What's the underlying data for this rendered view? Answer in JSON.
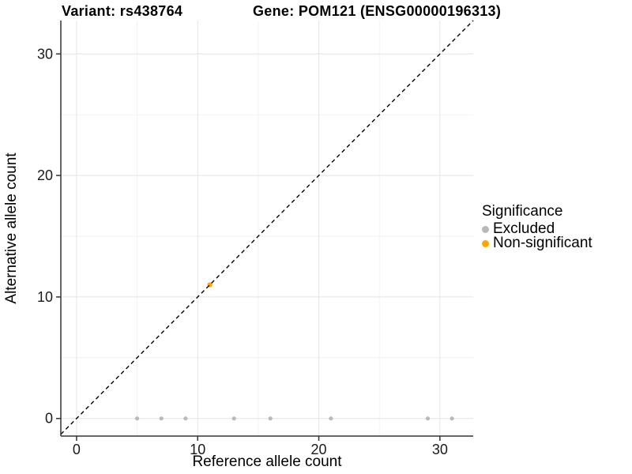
{
  "legend": {
    "title": "Significance",
    "items": [
      {
        "label": "Excluded",
        "color": "#b9b9b9"
      },
      {
        "label": "Non-significant",
        "color": "#ffa500"
      }
    ]
  },
  "chart_data": {
    "type": "scatter",
    "titles": [
      "Variant: rs438764",
      "Gene: POM121 (ENSG00000196313)"
    ],
    "xlabel": "Reference allele count",
    "ylabel": "Alternative allele count",
    "xlim": [
      -1.3,
      32.75
    ],
    "ylim": [
      -1.45,
      32.75
    ],
    "x_ticks": [
      0,
      10,
      20,
      30
    ],
    "y_ticks": [
      0,
      10,
      20,
      30
    ],
    "x_minor_gridlines": [
      5,
      15,
      25
    ],
    "y_minor_gridlines": [
      5,
      15,
      25
    ],
    "grid": "on (light gray major + minor)",
    "legend_position": "right-middle",
    "identity_line": {
      "equation": "y = x",
      "style": "dashed",
      "color": "#000000"
    },
    "series": [
      {
        "name": "Excluded",
        "color": "#b9b9b9",
        "marker": "circle",
        "marker_radius": 2.6,
        "points": [
          [
            5,
            0
          ],
          [
            7,
            0
          ],
          [
            9,
            0
          ],
          [
            13,
            0
          ],
          [
            16,
            0
          ],
          [
            21,
            0
          ],
          [
            29,
            0
          ],
          [
            31,
            0
          ]
        ]
      },
      {
        "name": "Non-significant",
        "color": "#ffa500",
        "marker": "circle",
        "marker_radius": 3.2,
        "points": [
          [
            11,
            11
          ]
        ]
      }
    ],
    "style_colors": {
      "axis_line": "#333333",
      "tick_mark": "#333333",
      "tick_text": "#1a1a1a",
      "grid_major": "#e4e4e4",
      "grid_minor": "#f2f2f2"
    }
  }
}
